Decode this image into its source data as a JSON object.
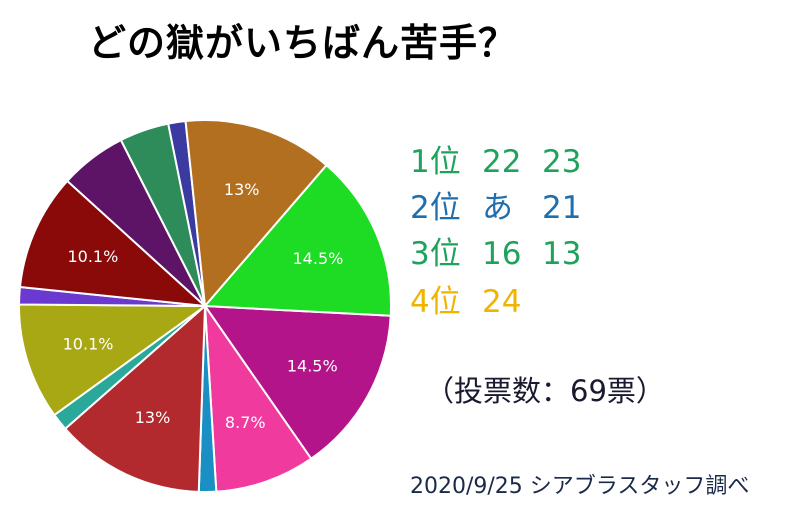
{
  "title": "どの獄がいちばん苦手？",
  "rankings": [
    {
      "label": "1位",
      "values": [
        "22",
        "23"
      ],
      "color": "#1fa35c"
    },
    {
      "label": "2位",
      "values": [
        "あ",
        "21"
      ],
      "color": "#1f6fae"
    },
    {
      "label": "3位",
      "values": [
        "16",
        "13"
      ],
      "color": "#1fa35c"
    },
    {
      "label": "4位",
      "values": [
        "24",
        ""
      ],
      "color": "#f0b400"
    }
  ],
  "votes_text": "（投票数：69票）",
  "credit": "2020/9/25 シアブラスタッフ調べ",
  "chart_data": {
    "type": "pie",
    "title": "どの獄がいちばん苦手？",
    "slices": [
      {
        "value": 14.5,
        "label": "14.5%",
        "color": "#b3148a"
      },
      {
        "value": 8.7,
        "label": "8.7%",
        "color": "#f03a9e"
      },
      {
        "value": 1.5,
        "label": "",
        "color": "#1a8fc4"
      },
      {
        "value": 13,
        "label": "13%",
        "color": "#b32a2e"
      },
      {
        "value": 1.5,
        "label": "",
        "color": "#2aa89a"
      },
      {
        "value": 10.1,
        "label": "10.1%",
        "color": "#a8a814"
      },
      {
        "value": 1.5,
        "label": "",
        "color": "#6a3ad0"
      },
      {
        "value": 10.1,
        "label": "10.1%",
        "color": "#8a0a0a"
      },
      {
        "value": 5.8,
        "label": "",
        "color": "#5e1466"
      },
      {
        "value": 4.3,
        "label": "",
        "color": "#2e8c5a"
      },
      {
        "value": 1.5,
        "label": "",
        "color": "#3a3aa0"
      },
      {
        "value": 13,
        "label": "13%",
        "color": "#b36f20"
      },
      {
        "value": 14.5,
        "label": "14.5%",
        "color": "#1edb24"
      }
    ]
  }
}
